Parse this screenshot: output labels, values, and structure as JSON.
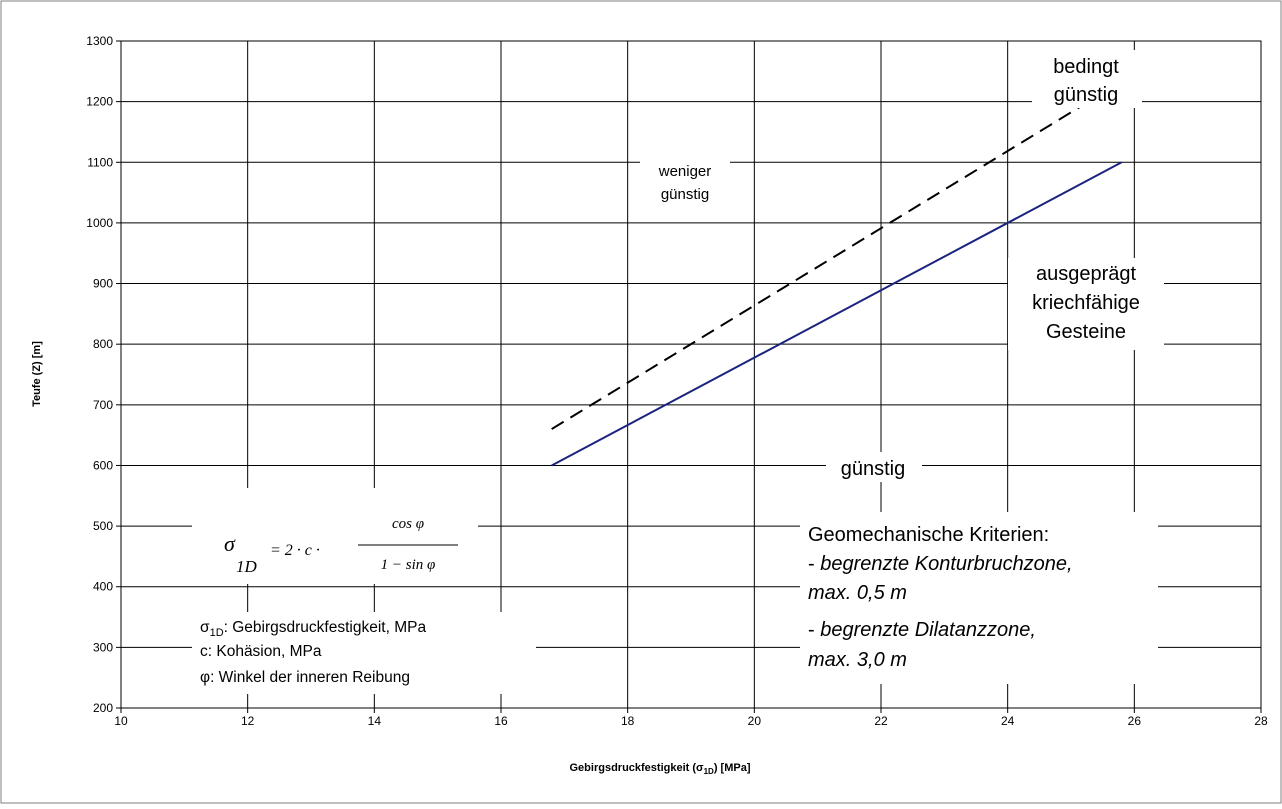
{
  "chart_data": {
    "type": "line",
    "title": "",
    "xlabel_main": "Gebirgsdruckfestigkeit (",
    "xlabel_sigma": "σ",
    "xlabel_sub": "1D",
    "xlabel_end": ") [MPa]",
    "ylabel": "Teufe (Z) [m]",
    "xlim": [
      10,
      28
    ],
    "ylim": [
      200,
      1300
    ],
    "x_ticks": [
      "10",
      "12",
      "14",
      "16",
      "18",
      "20",
      "22",
      "24",
      "26",
      "28"
    ],
    "y_ticks": [
      "200",
      "300",
      "400",
      "500",
      "600",
      "700",
      "800",
      "900",
      "1000",
      "1100",
      "1200",
      "1300"
    ],
    "grid": true,
    "series": [
      {
        "style": "solid",
        "color": "#1a237e",
        "x": [
          16.8,
          25.8
        ],
        "y": [
          600,
          1100
        ]
      },
      {
        "style": "dashed",
        "color": "#000000",
        "x": [
          16.8,
          25.2
        ],
        "y": [
          660,
          1195
        ]
      }
    ],
    "regions": {
      "bedingt_1": "bedingt",
      "bedingt_2": "günstig",
      "weniger_1": "weniger",
      "weniger_2": "günstig",
      "ausgepraegt_1": "ausgeprägt",
      "ausgepraegt_2": "kriechfähige",
      "ausgepraegt_3": "Gesteine",
      "guenstig": "günstig"
    },
    "formula": {
      "lhs": "σ",
      "lhs_sub": "1D",
      "eq": "= 2 · c ·",
      "numerator": "cos φ",
      "denominator": "1 − sin φ"
    },
    "legend": {
      "sigma": "σ",
      "sigma_sub": "1D",
      "sigma_desc": ": Gebirgsdruckfestigkeit, MPa",
      "c_line": "c: Kohäsion, MPa",
      "phi": "φ",
      "phi_desc": ": Winkel der inneren Reibung"
    },
    "criteria": {
      "title": "Geomechanische Kriterien:",
      "line1_dash": "- ",
      "line1": "begrenzte Konturbruchzone,",
      "line2": "max. 0,5 m",
      "line3_dash": "- ",
      "line3": "begrenzte Dilatanzzone,",
      "line4": "max. 3,0 m"
    }
  }
}
